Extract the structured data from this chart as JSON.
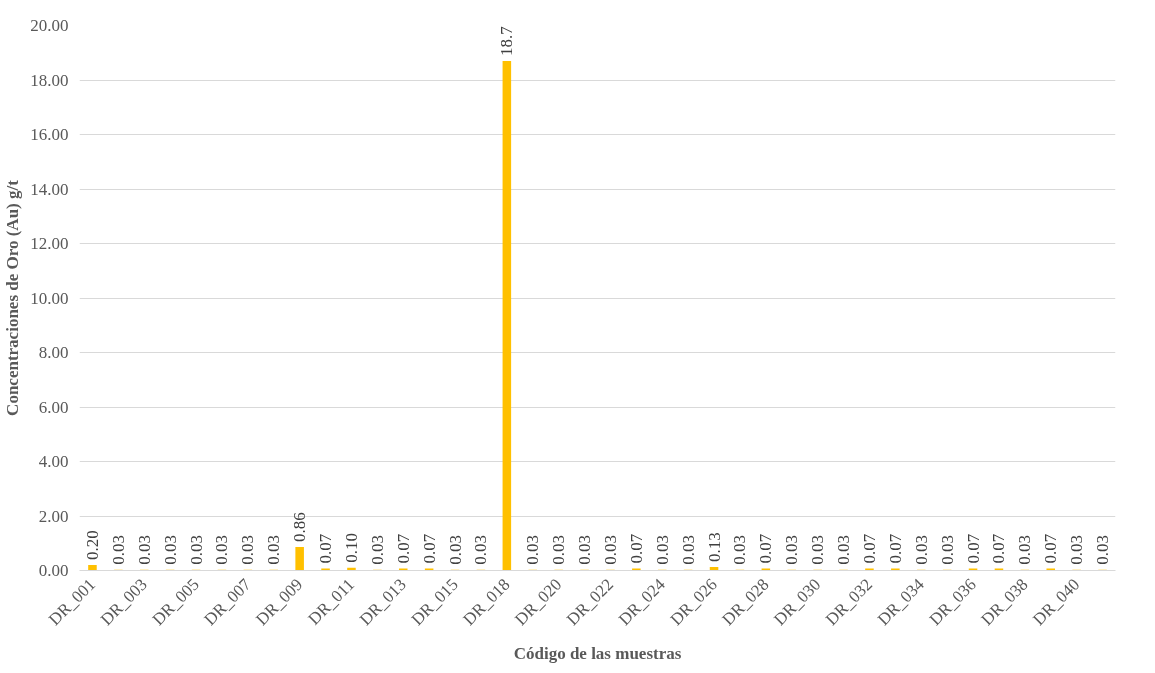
{
  "chart_data": {
    "type": "bar",
    "xlabel": "Código de las muestras",
    "ylabel": "Concentraciones de Oro (Au) g/t",
    "categories": [
      "DR_001",
      null,
      "DR_003",
      null,
      "DR_005",
      null,
      "DR_007",
      null,
      "DR_009",
      null,
      "DR_011",
      null,
      "DR_013",
      null,
      "DR_015",
      null,
      "DR_018",
      null,
      "DR_020",
      null,
      "DR_022",
      null,
      "DR_024",
      null,
      "DR_026",
      null,
      "DR_028",
      null,
      "DR_030",
      null,
      "DR_032",
      null,
      "DR_034",
      null,
      "DR_036",
      null,
      "DR_038",
      null,
      "DR_040",
      null
    ],
    "values": [
      0.2,
      0.03,
      0.03,
      0.03,
      0.03,
      0.03,
      0.03,
      0.03,
      0.86,
      0.07,
      0.1,
      0.03,
      0.07,
      0.07,
      0.03,
      0.03,
      18.7,
      0.03,
      0.03,
      0.03,
      0.03,
      0.07,
      0.03,
      0.03,
      0.13,
      0.03,
      0.07,
      0.03,
      0.03,
      0.03,
      0.07,
      0.07,
      0.03,
      0.03,
      0.07,
      0.07,
      0.03,
      0.07,
      0.03,
      0.03
    ],
    "value_labels": [
      "0.20",
      "0.03",
      "0.03",
      "0.03",
      "0.03",
      "0.03",
      "0.03",
      "0.03",
      "0.86",
      "0.07",
      "0.10",
      "0.03",
      "0.07",
      "0.07",
      "0.03",
      "0.03",
      "18.7",
      "0.03",
      "0.03",
      "0.03",
      "0.03",
      "0.07",
      "0.03",
      "0.03",
      "0.13",
      "0.03",
      "0.07",
      "0.03",
      "0.03",
      "0.03",
      "0.07",
      "0.07",
      "0.03",
      "0.03",
      "0.07",
      "0.07",
      "0.03",
      "0.07",
      "0.03",
      "0.03"
    ],
    "color": "#ffc000",
    "ylim": [
      0,
      20
    ],
    "yticks": [
      {
        "value": 0,
        "label": "0.00"
      },
      {
        "value": 2,
        "label": "2.00"
      },
      {
        "value": 4,
        "label": "4.00"
      },
      {
        "value": 6,
        "label": "6.00"
      },
      {
        "value": 8,
        "label": "8.00"
      },
      {
        "value": 10,
        "label": "10.00"
      },
      {
        "value": 12,
        "label": "12.00"
      },
      {
        "value": 14,
        "label": "14.00"
      },
      {
        "value": 16,
        "label": "16.00"
      },
      {
        "value": 18,
        "label": "18.00"
      },
      {
        "value": 20,
        "label": "20.00"
      }
    ],
    "grid": "y"
  }
}
